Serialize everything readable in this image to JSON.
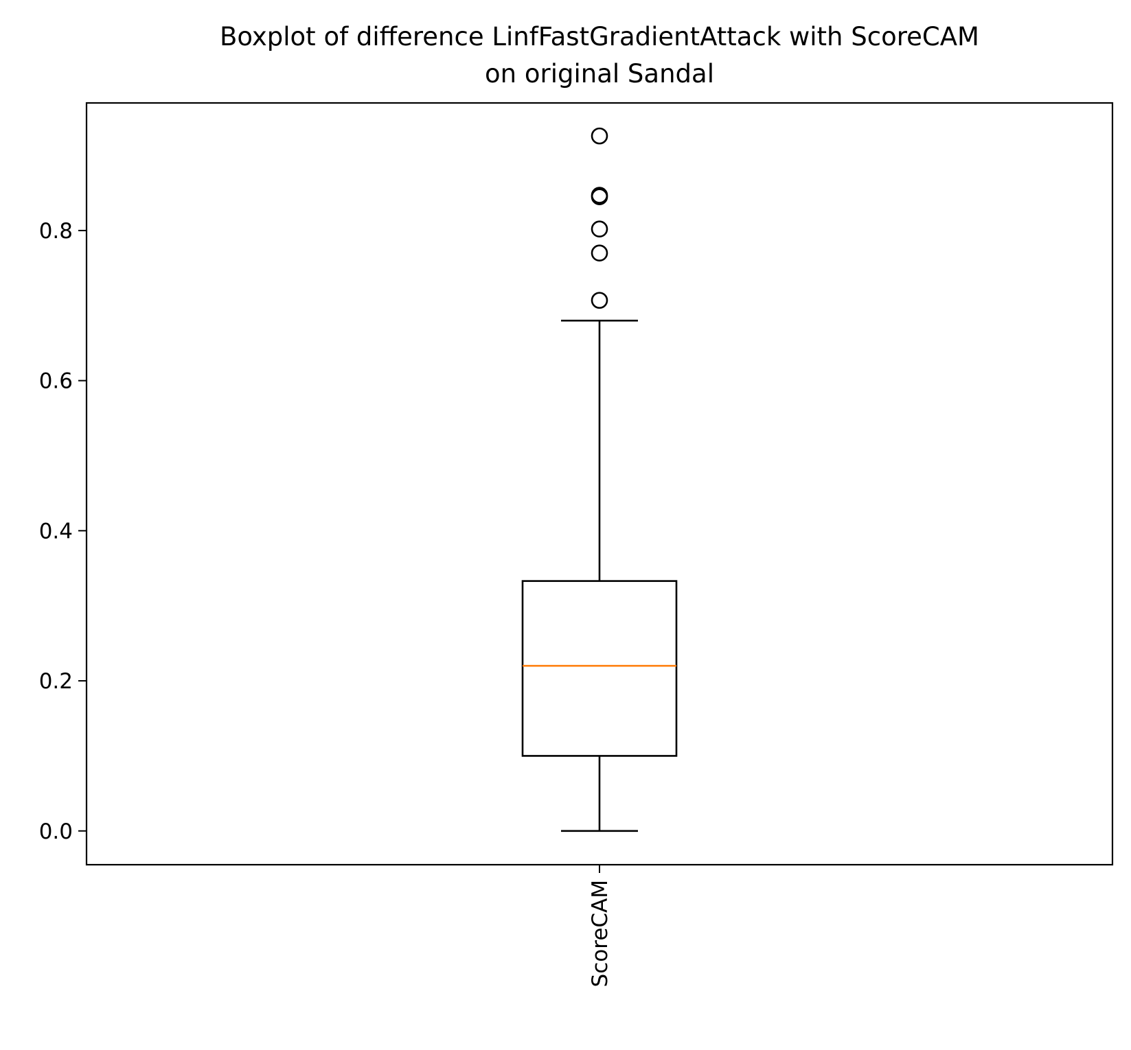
{
  "chart_data": {
    "type": "boxplot",
    "title_line1": "Boxplot of difference LinfFastGradientAttack with ScoreCAM",
    "title_line2": "on original Sandal",
    "xlabel": "",
    "ylabel": "",
    "ylim": [
      -0.045,
      0.97
    ],
    "y_ticks": [
      {
        "value": 0.0,
        "label": "0.0"
      },
      {
        "value": 0.2,
        "label": "0.2"
      },
      {
        "value": 0.4,
        "label": "0.4"
      },
      {
        "value": 0.6,
        "label": "0.6"
      },
      {
        "value": 0.8,
        "label": "0.8"
      }
    ],
    "categories": [
      "ScoreCAM"
    ],
    "boxes": [
      {
        "name": "ScoreCAM",
        "whisker_low": 0.0,
        "q1": 0.1,
        "median": 0.22,
        "q3": 0.333,
        "whisker_high": 0.68,
        "outliers": [
          0.707,
          0.77,
          0.802,
          0.845,
          0.847,
          0.926
        ]
      }
    ],
    "grid": false,
    "colors": {
      "box": "#000000",
      "median": "#ff7f0e",
      "outlier": "#000000"
    }
  }
}
